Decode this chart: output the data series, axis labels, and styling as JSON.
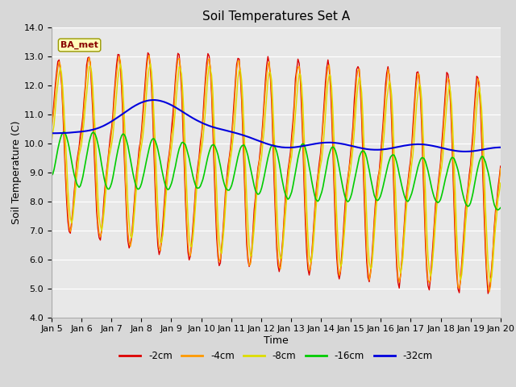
{
  "title": "Soil Temperatures Set A",
  "xlabel": "Time",
  "ylabel": "Soil Temperature (C)",
  "ylim": [
    4.0,
    14.0
  ],
  "yticks": [
    4.0,
    5.0,
    6.0,
    7.0,
    8.0,
    9.0,
    10.0,
    11.0,
    12.0,
    13.0,
    14.0
  ],
  "xtick_labels": [
    "Jan 5",
    "Jan 6",
    "Jan 7",
    "Jan 8",
    "Jan 9",
    "Jan 10",
    "Jan 11",
    "Jan 12",
    "Jan 13",
    "Jan 14",
    "Jan 15",
    "Jan 16",
    "Jan 17",
    "Jan 18",
    "Jan 19",
    "Jan 20"
  ],
  "annotation": "BA_met",
  "line_colors": [
    "#dd0000",
    "#ff9900",
    "#dddd00",
    "#00cc00",
    "#0000dd"
  ],
  "line_labels": [
    "-2cm",
    "-4cm",
    "-8cm",
    "-16cm",
    "-32cm"
  ],
  "line_widths": [
    1.0,
    1.0,
    1.0,
    1.2,
    1.5
  ],
  "background_color": "#e8e8e8",
  "title_fontsize": 11,
  "axis_label_fontsize": 9,
  "tick_fontsize": 8
}
